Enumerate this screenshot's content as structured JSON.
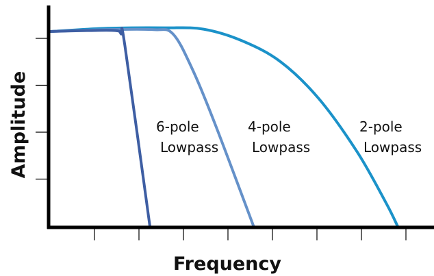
{
  "chart_data": {
    "type": "line",
    "xlabel": "Frequency",
    "ylabel": "Amplitude",
    "xlim": [
      0,
      10
    ],
    "ylim": [
      0,
      4.2
    ],
    "x_tick_count": 8,
    "y_tick_count": 4,
    "grid": false,
    "series": [
      {
        "name": "6-pole Lowpass",
        "label_lines": [
          "6-pole",
          "Lowpass"
        ],
        "color": "#3e5ea3",
        "points": [
          [
            0,
            4.2
          ],
          [
            1.0,
            4.22
          ],
          [
            1.7,
            4.22
          ],
          [
            1.85,
            4.15
          ],
          [
            1.95,
            3.9
          ],
          [
            2.6,
            0
          ]
        ]
      },
      {
        "name": "4-pole Lowpass",
        "label_lines": [
          "4-pole",
          "Lowpass"
        ],
        "color": "#6591c9",
        "points": [
          [
            0,
            4.2
          ],
          [
            1.5,
            4.24
          ],
          [
            2.7,
            4.24
          ],
          [
            3.2,
            4.15
          ],
          [
            3.7,
            3.4
          ],
          [
            4.3,
            2.2
          ],
          [
            5.3,
            0
          ]
        ]
      },
      {
        "name": "2-pole Lowpass",
        "label_lines": [
          "2-pole",
          "Lowpass"
        ],
        "color": "#1b92c9",
        "points": [
          [
            0,
            4.2
          ],
          [
            1.5,
            4.27
          ],
          [
            3.0,
            4.28
          ],
          [
            4.0,
            4.25
          ],
          [
            5.0,
            4.0
          ],
          [
            6.0,
            3.55
          ],
          [
            7.0,
            2.75
          ],
          [
            8.0,
            1.6
          ],
          [
            8.75,
            0.5
          ],
          [
            9.05,
            0
          ]
        ]
      }
    ]
  }
}
